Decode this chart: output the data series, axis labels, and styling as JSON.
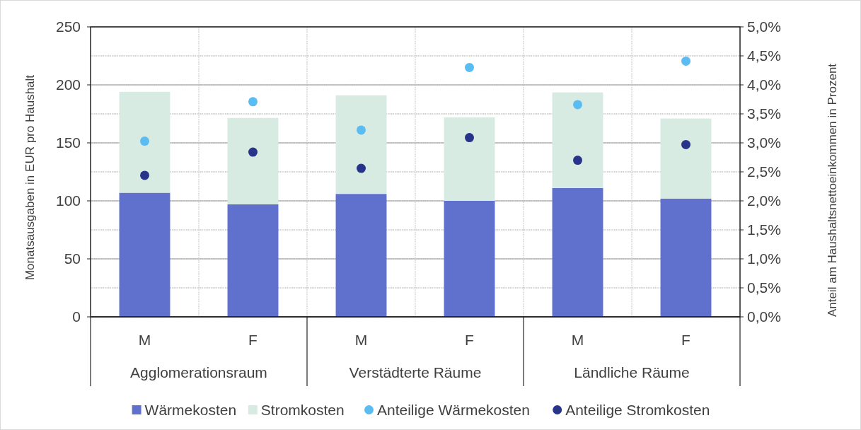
{
  "chart_data": {
    "type": "bar",
    "stacked": true,
    "categories": [
      "M",
      "F",
      "M",
      "F",
      "M",
      "F"
    ],
    "annotations": [
      "Agglomerationsraum",
      "Verstädterte Räume",
      "Ländliche Räume"
    ],
    "ylabel": "Monatsausgaben in EUR pro Haushalt",
    "y2label": "Anteil am Haushaltsnettoeinkommen in Prozent",
    "ylim": [
      0,
      250
    ],
    "yticks": [
      0,
      50,
      100,
      150,
      200,
      250
    ],
    "y2lim": [
      0,
      5
    ],
    "y2ticks": [
      {
        "value": 0,
        "label": "0,0%"
      },
      {
        "value": 0.5,
        "label": "0,5%"
      },
      {
        "value": 1,
        "label": "1,0%"
      },
      {
        "value": 1.5,
        "label": "1,5%"
      },
      {
        "value": 2,
        "label": "2,0%"
      },
      {
        "value": 2.5,
        "label": "2,5%"
      },
      {
        "value": 3,
        "label": "3,0%"
      },
      {
        "value": 3.5,
        "label": "3,5%"
      },
      {
        "value": 4,
        "label": "4,0%"
      },
      {
        "value": 4.5,
        "label": "4,5%"
      },
      {
        "value": 5,
        "label": "5,0%"
      }
    ],
    "grid": true,
    "legend": "bottom",
    "series": [
      {
        "name": "Wärmekosten",
        "color": "#6070cd",
        "values": [
          107,
          97,
          106,
          100,
          111,
          102
        ]
      },
      {
        "name": "Stromkosten",
        "color": "#d7ebe2",
        "values": [
          87,
          74.5,
          85,
          72,
          82.5,
          69
        ]
      },
      {
        "name": "Anteilige Wärmekosten",
        "type": "scatter",
        "axis": "y2",
        "marker": "circle",
        "color": "#5bbcf2",
        "values": [
          3.03,
          3.71,
          3.22,
          4.3,
          3.66,
          4.41
        ]
      },
      {
        "name": "Anteilige Stromkosten",
        "type": "scatter",
        "axis": "y2",
        "marker": "circle",
        "color": "#28348a",
        "values": [
          2.44,
          2.84,
          2.56,
          3.09,
          2.7,
          2.97
        ]
      }
    ]
  }
}
